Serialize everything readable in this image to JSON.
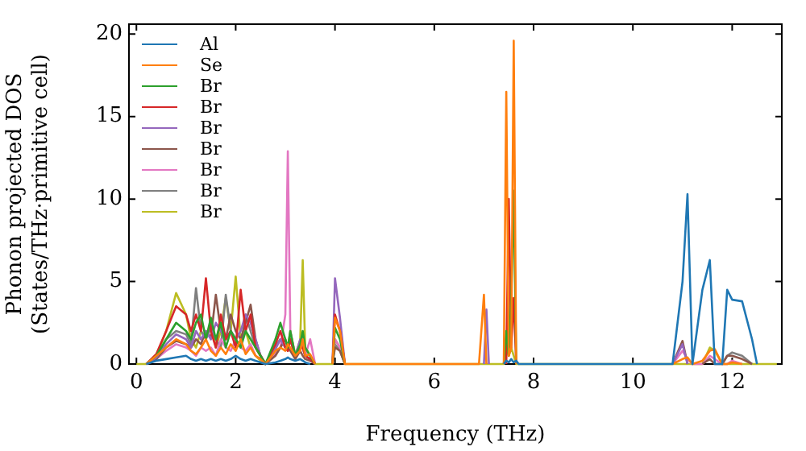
{
  "chart_data": {
    "type": "line",
    "xlabel": "Frequency (THz)",
    "ylabel": "Phonon projected DOS\n(States/THz·primitive cell)",
    "x": [
      0,
      0.2,
      0.4,
      0.6,
      0.8,
      1.0,
      1.1,
      1.2,
      1.3,
      1.4,
      1.5,
      1.6,
      1.7,
      1.8,
      1.9,
      2.0,
      2.1,
      2.2,
      2.3,
      2.4,
      2.5,
      2.6,
      2.8,
      2.9,
      3.0,
      3.05,
      3.1,
      3.2,
      3.3,
      3.35,
      3.4,
      3.5,
      3.6,
      3.8,
      3.95,
      4.0,
      4.1,
      4.2,
      6.9,
      7.0,
      7.05,
      7.1,
      7.2,
      7.4,
      7.45,
      7.5,
      7.55,
      7.6,
      7.65,
      7.7,
      10.8,
      11.0,
      11.1,
      11.2,
      11.4,
      11.55,
      11.65,
      11.8,
      11.9,
      12.0,
      12.2,
      12.4,
      12.5,
      12.9
    ],
    "xlim": [
      -0.15,
      13
    ],
    "xticks": [
      0,
      2,
      4,
      6,
      8,
      10,
      12
    ],
    "ylim": [
      0,
      20.6
    ],
    "yticks": [
      0,
      5,
      10,
      15,
      20
    ],
    "grid": false,
    "legend": "top left",
    "marker": "none",
    "line_style": "solid",
    "series": [
      {
        "name": "Al",
        "color": "#1f77b4",
        "values": [
          null,
          0,
          0.2,
          0.3,
          0.4,
          0.5,
          0.3,
          0.2,
          0.3,
          0.2,
          0.3,
          0.2,
          0.3,
          0.2,
          0.3,
          0.5,
          0.3,
          0.2,
          0.3,
          0.2,
          0.1,
          0,
          0.1,
          0.2,
          0.3,
          0.4,
          0.3,
          0.2,
          0.3,
          0.2,
          0.1,
          0,
          null,
          null,
          null,
          null,
          null,
          null,
          null,
          null,
          null,
          null,
          null,
          0,
          0.2,
          0.1,
          0.3,
          0.1,
          0.2,
          0,
          0,
          5,
          10.3,
          0,
          4.5,
          6.3,
          0,
          0,
          4.5,
          3.9,
          3.8,
          1.5,
          0,
          null
        ]
      },
      {
        "name": "Se",
        "color": "#ff7f0e",
        "values": [
          null,
          0,
          0.5,
          1,
          1.5,
          1.2,
          0.8,
          0.6,
          1,
          1.5,
          0.8,
          0.5,
          1,
          0.6,
          1.2,
          0.8,
          1.5,
          0.6,
          1,
          0.5,
          0.3,
          0,
          0.8,
          1,
          0.8,
          1.2,
          1,
          0.5,
          0.8,
          1.5,
          0.5,
          0.6,
          0,
          null,
          0,
          2.8,
          2,
          0,
          0,
          4.2,
          0,
          null,
          null,
          0,
          16.5,
          0.5,
          1,
          19.6,
          0,
          null,
          0,
          0.3,
          0.4,
          0,
          0.2,
          0.8,
          0.9,
          0,
          0,
          0.1,
          0,
          null,
          null,
          null
        ]
      },
      {
        "name": "Br",
        "color": "#2ca02c",
        "values": [
          null,
          0,
          0.5,
          1.5,
          2.5,
          2,
          1.5,
          2.5,
          3,
          1.5,
          2.8,
          1.5,
          2.5,
          1,
          2,
          1.5,
          1,
          2,
          1.5,
          1,
          0.5,
          0,
          1.5,
          2.5,
          1.5,
          1,
          2,
          0.5,
          1.2,
          2,
          1,
          0.5,
          0,
          null,
          0,
          2.2,
          1.5,
          0,
          null,
          null,
          null,
          null,
          null,
          0,
          2,
          0.5,
          4,
          10.5,
          0,
          null,
          null,
          null,
          null,
          null,
          null,
          null,
          null,
          null,
          null,
          null,
          null,
          null,
          null,
          null
        ]
      },
      {
        "name": "Br",
        "color": "#d62728",
        "values": [
          null,
          0,
          0.6,
          2,
          3.5,
          3,
          2,
          3,
          2,
          5.2,
          2,
          1,
          3,
          1.5,
          2,
          1,
          4.5,
          2,
          3,
          1,
          0.5,
          0,
          1.2,
          2,
          1,
          0.8,
          1.5,
          0.5,
          1,
          1,
          0.5,
          0.3,
          0,
          null,
          0,
          3,
          2,
          0,
          null,
          null,
          null,
          null,
          null,
          null,
          0,
          10,
          1,
          4,
          0,
          null,
          null,
          null,
          null,
          null,
          null,
          null,
          null,
          null,
          null,
          null,
          null,
          null,
          null,
          null
        ]
      },
      {
        "name": "Br",
        "color": "#9467bd",
        "values": [
          null,
          0,
          0.4,
          1.2,
          1.8,
          1.5,
          1,
          2,
          1.5,
          2,
          1.5,
          2.5,
          2,
          1.5,
          2,
          1.5,
          2,
          3,
          2.5,
          1.5,
          0.5,
          0,
          0.9,
          1.5,
          1,
          1,
          1.5,
          0.5,
          1.5,
          1,
          0.5,
          0.3,
          0,
          null,
          0,
          5.2,
          2.8,
          0,
          null,
          0,
          3.3,
          0,
          null,
          null,
          null,
          null,
          null,
          null,
          null,
          null,
          0,
          1.2,
          0,
          null,
          null,
          null,
          null,
          null,
          null,
          null,
          null,
          null,
          null,
          null
        ]
      },
      {
        "name": "Br",
        "color": "#8c564b",
        "values": [
          null,
          0,
          0.3,
          1,
          1.4,
          1.2,
          1,
          1.5,
          1.2,
          2,
          1.6,
          4.2,
          2,
          1.5,
          3,
          2,
          1.5,
          2.5,
          3.6,
          1.5,
          0.5,
          0,
          0.5,
          1,
          1.5,
          1,
          0.8,
          0.3,
          0.8,
          0.5,
          0.3,
          0.2,
          0,
          null,
          0,
          1,
          0.8,
          0,
          null,
          null,
          null,
          null,
          null,
          null,
          null,
          null,
          null,
          null,
          null,
          null,
          0,
          1.4,
          0,
          null,
          0,
          0.3,
          0,
          0,
          0.5,
          0.5,
          0.3,
          0,
          null,
          null
        ]
      },
      {
        "name": "Br",
        "color": "#e377c2",
        "values": [
          null,
          0,
          0.3,
          0.8,
          1.2,
          1,
          0.8,
          0.5,
          1,
          0.8,
          1,
          0.5,
          1.5,
          1,
          0.8,
          1.5,
          1,
          0.8,
          1.2,
          0.5,
          0.3,
          0,
          0.6,
          1,
          3,
          12.9,
          2,
          0.5,
          1,
          1.8,
          0.5,
          1.5,
          0,
          null,
          0,
          1.5,
          1,
          0,
          null,
          null,
          null,
          null,
          null,
          null,
          null,
          null,
          null,
          null,
          null,
          null,
          0,
          0.8,
          0.3,
          0,
          0,
          0.5,
          0.3,
          0,
          0,
          0.2,
          0,
          null,
          null,
          null
        ]
      },
      {
        "name": "Br",
        "color": "#7f7f7f",
        "values": [
          null,
          0,
          0.4,
          1.5,
          2,
          1.8,
          1.2,
          4.6,
          2,
          1.5,
          2.2,
          1.5,
          1,
          4.2,
          2,
          1.5,
          1,
          3,
          2,
          1,
          0.5,
          0,
          1.1,
          1.5,
          1,
          0.8,
          1.5,
          0.5,
          1,
          1,
          0.5,
          0.3,
          0,
          null,
          0,
          1.2,
          0.8,
          0,
          null,
          null,
          null,
          null,
          null,
          null,
          null,
          null,
          null,
          null,
          null,
          null,
          null,
          null,
          null,
          null,
          null,
          null,
          null,
          0,
          0.5,
          0.7,
          0.5,
          0,
          null,
          null
        ]
      },
      {
        "name": "Br",
        "color": "#bcbd22",
        "values": [
          0,
          0,
          0.5,
          2,
          4.3,
          3,
          1.5,
          1,
          2,
          1.6,
          2.5,
          1,
          2,
          4,
          2,
          5.3,
          1.5,
          2,
          1,
          0.5,
          0.2,
          0,
          1,
          1.5,
          1,
          1,
          2,
          0.5,
          1.5,
          6.3,
          1,
          0.5,
          0,
          0,
          0,
          1.5,
          1,
          0,
          0,
          0,
          0,
          0,
          0,
          0,
          1,
          0.5,
          1,
          0.5,
          0,
          0,
          0,
          0,
          0,
          0,
          0,
          1,
          0.8,
          0,
          0,
          0,
          0,
          0,
          0,
          0
        ]
      }
    ]
  }
}
